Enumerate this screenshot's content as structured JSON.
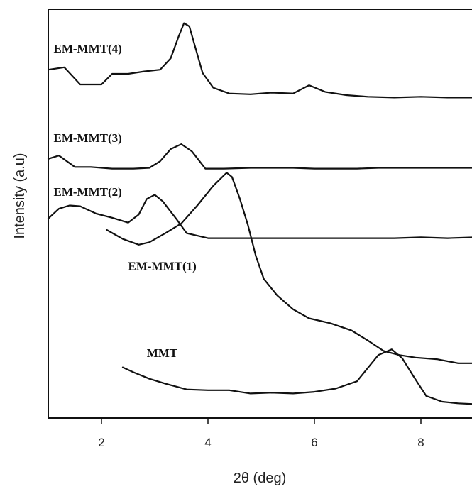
{
  "chart_data": {
    "type": "line",
    "xlabel": "2θ (deg)",
    "ylabel": "Intensity (a.u)",
    "xlim": [
      1,
      9
    ],
    "ylim": [
      0,
      100
    ],
    "x_ticks": [
      2,
      4,
      6,
      8
    ],
    "grid": false,
    "legend": "none",
    "series": [
      {
        "name": "EM-MMT(4)",
        "label_pos": [
          1.1,
          89.4
        ],
        "points": [
          [
            1.0,
            85.2
          ],
          [
            1.3,
            85.8
          ],
          [
            1.6,
            81.6
          ],
          [
            1.8,
            81.6
          ],
          [
            2.0,
            81.6
          ],
          [
            2.2,
            84.2
          ],
          [
            2.5,
            84.2
          ],
          [
            2.8,
            84.8
          ],
          [
            3.1,
            85.2
          ],
          [
            3.3,
            88.0
          ],
          [
            3.45,
            93.4
          ],
          [
            3.55,
            96.6
          ],
          [
            3.65,
            95.8
          ],
          [
            3.75,
            91.2
          ],
          [
            3.9,
            84.4
          ],
          [
            4.1,
            80.8
          ],
          [
            4.4,
            79.4
          ],
          [
            4.8,
            79.2
          ],
          [
            5.2,
            79.6
          ],
          [
            5.6,
            79.4
          ],
          [
            5.9,
            81.4
          ],
          [
            6.2,
            79.8
          ],
          [
            6.6,
            79.0
          ],
          [
            7.0,
            78.6
          ],
          [
            7.5,
            78.4
          ],
          [
            8.0,
            78.6
          ],
          [
            8.5,
            78.4
          ],
          [
            9.0,
            78.4
          ]
        ]
      },
      {
        "name": "EM-MMT(3)",
        "label_pos": [
          1.1,
          67.5
        ],
        "points": [
          [
            1.0,
            63.4
          ],
          [
            1.2,
            64.2
          ],
          [
            1.5,
            61.4
          ],
          [
            1.8,
            61.4
          ],
          [
            2.2,
            61.0
          ],
          [
            2.6,
            61.0
          ],
          [
            2.9,
            61.2
          ],
          [
            3.1,
            62.8
          ],
          [
            3.3,
            65.8
          ],
          [
            3.5,
            67.0
          ],
          [
            3.7,
            65.2
          ],
          [
            3.95,
            61.0
          ],
          [
            4.3,
            61.0
          ],
          [
            4.8,
            61.2
          ],
          [
            5.2,
            61.2
          ],
          [
            5.6,
            61.2
          ],
          [
            6.0,
            61.0
          ],
          [
            6.4,
            61.0
          ],
          [
            6.8,
            61.0
          ],
          [
            7.2,
            61.2
          ],
          [
            7.6,
            61.2
          ],
          [
            8.0,
            61.2
          ],
          [
            8.5,
            61.2
          ],
          [
            9.0,
            61.2
          ]
        ]
      },
      {
        "name": "EM-MMT(2)",
        "label_pos": [
          1.1,
          54.3
        ],
        "points": [
          [
            1.0,
            48.8
          ],
          [
            1.2,
            51.2
          ],
          [
            1.4,
            52.0
          ],
          [
            1.6,
            51.8
          ],
          [
            1.9,
            50.0
          ],
          [
            2.2,
            49.0
          ],
          [
            2.5,
            47.8
          ],
          [
            2.7,
            49.8
          ],
          [
            2.85,
            53.6
          ],
          [
            3.0,
            54.6
          ],
          [
            3.15,
            53.0
          ],
          [
            3.4,
            48.8
          ],
          [
            3.6,
            45.2
          ],
          [
            4.0,
            44.0
          ],
          [
            4.5,
            44.0
          ],
          [
            5.0,
            44.0
          ],
          [
            5.5,
            44.0
          ],
          [
            6.0,
            44.0
          ],
          [
            6.5,
            44.0
          ],
          [
            7.0,
            44.0
          ],
          [
            7.5,
            44.0
          ],
          [
            8.0,
            44.2
          ],
          [
            8.5,
            44.0
          ],
          [
            9.0,
            44.2
          ]
        ]
      },
      {
        "name": "EM-MMT(1)",
        "label_pos": [
          2.5,
          36.2
        ],
        "points": [
          [
            2.1,
            46.0
          ],
          [
            2.4,
            43.8
          ],
          [
            2.7,
            42.4
          ],
          [
            2.9,
            43.0
          ],
          [
            3.2,
            45.2
          ],
          [
            3.5,
            47.6
          ],
          [
            3.8,
            52.0
          ],
          [
            4.1,
            56.8
          ],
          [
            4.35,
            60.0
          ],
          [
            4.45,
            59.0
          ],
          [
            4.6,
            53.6
          ],
          [
            4.75,
            47.2
          ],
          [
            4.9,
            39.6
          ],
          [
            5.05,
            34.0
          ],
          [
            5.3,
            30.0
          ],
          [
            5.6,
            26.6
          ],
          [
            5.9,
            24.4
          ],
          [
            6.3,
            23.2
          ],
          [
            6.7,
            21.4
          ],
          [
            7.0,
            19.0
          ],
          [
            7.3,
            16.4
          ],
          [
            7.6,
            15.4
          ],
          [
            7.9,
            14.8
          ],
          [
            8.3,
            14.4
          ],
          [
            8.7,
            13.4
          ],
          [
            9.0,
            13.4
          ]
        ]
      },
      {
        "name": "MMT",
        "label_pos": [
          2.85,
          14.9
        ],
        "points": [
          [
            2.4,
            12.4
          ],
          [
            2.6,
            11.2
          ],
          [
            2.9,
            9.6
          ],
          [
            3.2,
            8.4
          ],
          [
            3.6,
            7.0
          ],
          [
            4.0,
            6.8
          ],
          [
            4.4,
            6.8
          ],
          [
            4.8,
            6.0
          ],
          [
            5.2,
            6.2
          ],
          [
            5.6,
            6.0
          ],
          [
            6.0,
            6.4
          ],
          [
            6.4,
            7.2
          ],
          [
            6.8,
            9.0
          ],
          [
            7.0,
            12.2
          ],
          [
            7.2,
            15.4
          ],
          [
            7.45,
            16.8
          ],
          [
            7.65,
            14.6
          ],
          [
            7.85,
            10.4
          ],
          [
            8.1,
            5.4
          ],
          [
            8.4,
            4.0
          ],
          [
            8.7,
            3.6
          ],
          [
            9.0,
            3.4
          ]
        ]
      }
    ]
  }
}
